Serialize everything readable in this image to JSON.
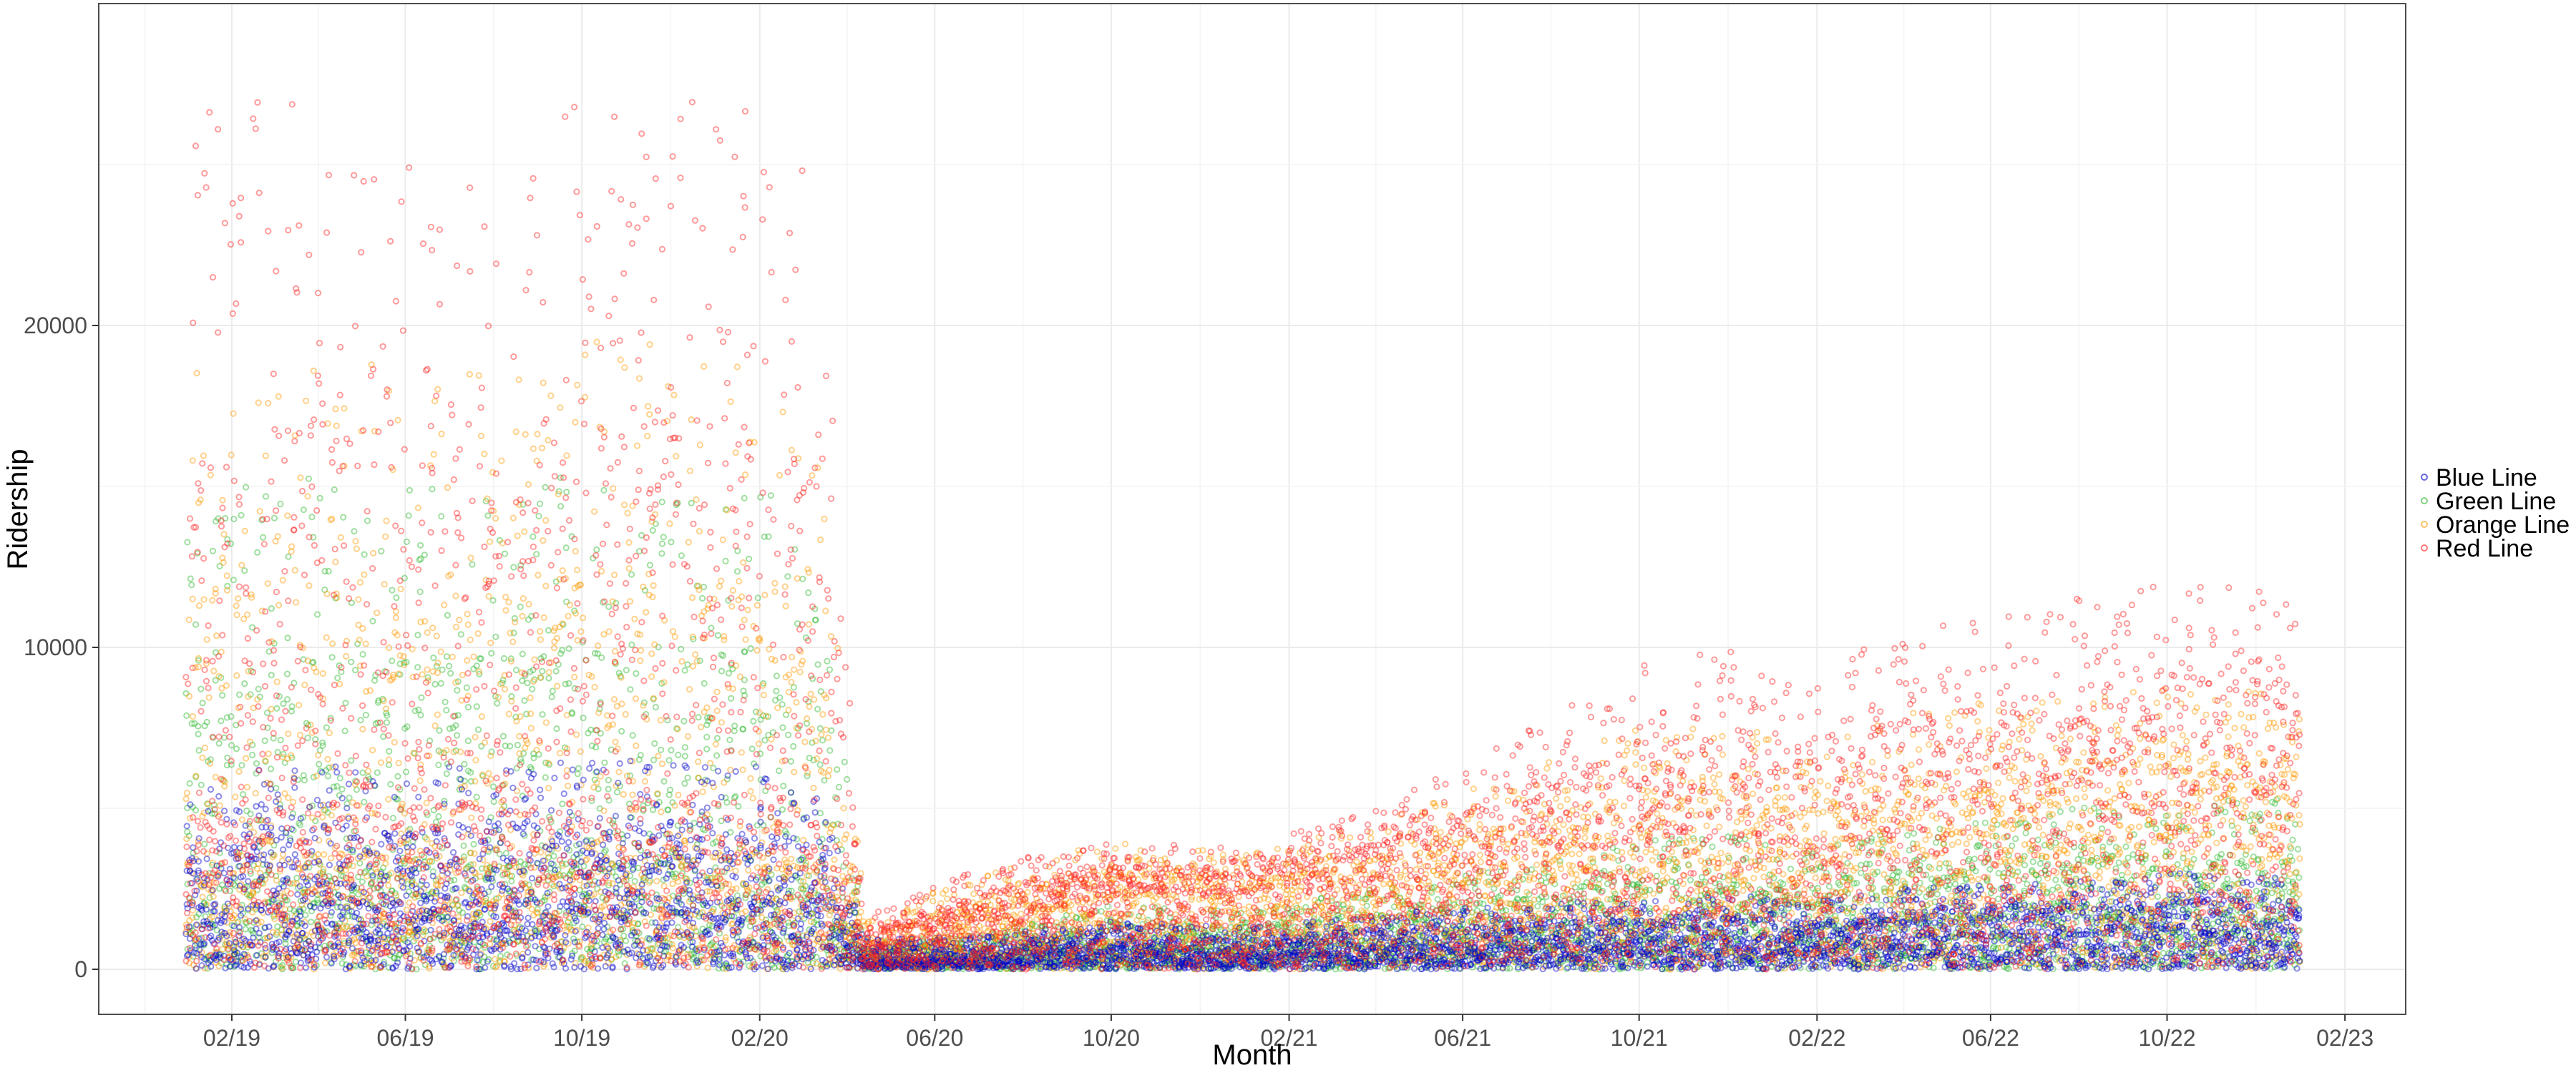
{
  "chart_data": {
    "type": "scatter",
    "title": "",
    "xlabel": "Month",
    "ylabel": "Ridership",
    "xlim": [
      "2018-11-01",
      "2023-03-15"
    ],
    "ylim": [
      -1400,
      30000
    ],
    "x_ticks": [
      {
        "date": "2019-02-01",
        "label": "02/19"
      },
      {
        "date": "2019-06-01",
        "label": "06/19"
      },
      {
        "date": "2019-10-01",
        "label": "10/19"
      },
      {
        "date": "2020-02-01",
        "label": "02/20"
      },
      {
        "date": "2020-06-01",
        "label": "06/20"
      },
      {
        "date": "2020-10-01",
        "label": "10/20"
      },
      {
        "date": "2021-02-01",
        "label": "02/21"
      },
      {
        "date": "2021-06-01",
        "label": "06/21"
      },
      {
        "date": "2021-10-01",
        "label": "10/21"
      },
      {
        "date": "2022-02-01",
        "label": "02/22"
      },
      {
        "date": "2022-06-01",
        "label": "06/22"
      },
      {
        "date": "2022-10-01",
        "label": "10/22"
      },
      {
        "date": "2023-02-01",
        "label": "02/23"
      }
    ],
    "y_ticks": [
      0,
      10000,
      20000
    ],
    "grid": true,
    "legend_position": "right",
    "series": [
      {
        "name": "Blue Line",
        "color": "#0000cc",
        "x": [
          "2019-01-01",
          "2019-02-15",
          "2019-04-01",
          "2019-06-01",
          "2019-08-01",
          "2019-10-01",
          "2019-12-01",
          "2020-02-01",
          "2020-03-10",
          "2020-04-15",
          "2020-07-01",
          "2020-10-01",
          "2021-01-01",
          "2021-04-01",
          "2021-07-01",
          "2021-10-01",
          "2021-12-15",
          "2022-01-15",
          "2022-04-01",
          "2022-07-01",
          "2022-10-01",
          "2022-12-31"
        ],
        "median": [
          2000,
          2050,
          2100,
          2150,
          2150,
          2200,
          2150,
          2150,
          1900,
          300,
          350,
          600,
          500,
          650,
          800,
          950,
          1000,
          900,
          1050,
          1150,
          1250,
          1300
        ],
        "high": [
          6200,
          6300,
          6400,
          6300,
          6500,
          6600,
          6400,
          6300,
          6000,
          1000,
          1000,
          1500,
          1300,
          1700,
          2000,
          2200,
          2300,
          2000,
          2500,
          2800,
          3000,
          3100
        ]
      },
      {
        "name": "Green Line",
        "color": "#2eb82e",
        "x": [
          "2019-01-01",
          "2019-02-15",
          "2019-04-01",
          "2019-06-01",
          "2019-08-01",
          "2019-10-01",
          "2019-12-01",
          "2020-02-01",
          "2020-03-10",
          "2020-04-15",
          "2020-07-01",
          "2020-10-01",
          "2021-01-01",
          "2021-04-01",
          "2021-07-01",
          "2021-10-01",
          "2021-12-15",
          "2022-01-15",
          "2022-04-01",
          "2022-07-01",
          "2022-10-01",
          "2022-12-31"
        ],
        "median": [
          3000,
          3100,
          3200,
          3200,
          3300,
          3400,
          3300,
          3200,
          2800,
          300,
          400,
          800,
          700,
          900,
          1200,
          1500,
          1500,
          1300,
          1600,
          1800,
          1900,
          2000
        ],
        "high": [
          15000,
          15200,
          15500,
          15300,
          15000,
          15800,
          15500,
          15000,
          14000,
          900,
          1100,
          2000,
          1800,
          2500,
          3200,
          4000,
          4200,
          3500,
          4500,
          5000,
          5200,
          5300
        ]
      },
      {
        "name": "Orange Line",
        "color": "#ff9900",
        "x": [
          "2019-01-01",
          "2019-02-15",
          "2019-04-01",
          "2019-06-01",
          "2019-08-01",
          "2019-10-01",
          "2019-12-01",
          "2020-02-01",
          "2020-03-10",
          "2020-04-15",
          "2020-07-01",
          "2020-10-01",
          "2021-01-01",
          "2021-04-01",
          "2021-07-01",
          "2021-10-01",
          "2021-12-15",
          "2022-01-15",
          "2022-04-01",
          "2022-07-01",
          "2022-10-01",
          "2022-12-31"
        ],
        "median": [
          3500,
          3600,
          3700,
          3700,
          3800,
          3900,
          3800,
          3700,
          3300,
          500,
          1200,
          2200,
          1800,
          2300,
          2800,
          3300,
          3500,
          3000,
          3600,
          3900,
          4100,
          4200
        ],
        "high": [
          18500,
          18700,
          19000,
          18800,
          18500,
          19800,
          19300,
          18800,
          17500,
          1500,
          3000,
          4000,
          3600,
          4500,
          6000,
          7500,
          7800,
          6500,
          8000,
          8500,
          8700,
          8800
        ]
      },
      {
        "name": "Red Line",
        "color": "#ff2222",
        "x": [
          "2019-01-01",
          "2019-02-15",
          "2019-04-01",
          "2019-06-01",
          "2019-08-01",
          "2019-10-01",
          "2019-12-01",
          "2020-02-01",
          "2020-03-10",
          "2020-04-15",
          "2020-07-01",
          "2020-10-01",
          "2021-01-01",
          "2021-04-01",
          "2021-07-01",
          "2021-10-01",
          "2021-12-15",
          "2022-01-15",
          "2022-04-01",
          "2022-07-01",
          "2022-10-01",
          "2022-12-31"
        ],
        "median": [
          5000,
          5100,
          5200,
          5200,
          5300,
          5400,
          5300,
          5200,
          4800,
          700,
          1500,
          2500,
          2200,
          2800,
          3500,
          4200,
          4500,
          3600,
          4800,
          5200,
          5500,
          5400
        ],
        "high": [
          26500,
          27000,
          26800,
          25500,
          24000,
          27200,
          27500,
          26500,
          25000,
          1700,
          3200,
          4000,
          3800,
          5000,
          7000,
          9500,
          10000,
          9000,
          10500,
          11200,
          12300,
          11500
        ]
      }
    ]
  }
}
